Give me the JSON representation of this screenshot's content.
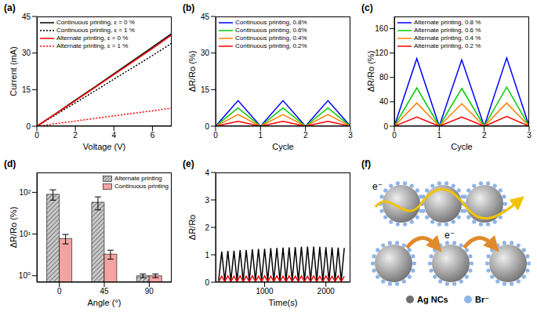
{
  "chart_data": [
    {
      "type": "line",
      "title": "(a)",
      "x_label": "Voltage (V)",
      "y_label": "Current (mA)",
      "x": [
        0,
        1,
        2,
        3,
        4,
        5,
        6,
        7
      ],
      "xlim": [
        0,
        7
      ],
      "xticks": [
        0,
        2,
        4,
        6
      ],
      "ylim": [
        0,
        45
      ],
      "yticks": [
        0,
        15,
        30,
        45
      ],
      "legend": "upper left",
      "series": [
        {
          "name": "Continuous printing, ε = 0 %",
          "color": "#000000",
          "line_style": "solid",
          "values": [
            0,
            5.3,
            10.7,
            16,
            21.5,
            27,
            32.4,
            38
          ]
        },
        {
          "name": "Continuous printing, ε = 1 %",
          "color": "#000000",
          "line_style": "dotted",
          "values": [
            0,
            4.8,
            9.6,
            14.4,
            19.3,
            24.1,
            29,
            34
          ]
        },
        {
          "name": "Alternate printing, ε = 0 %",
          "color": "#ff0000",
          "line_style": "solid",
          "values": [
            0,
            5.2,
            10.5,
            15.8,
            21.2,
            26.5,
            31.9,
            37.4
          ]
        },
        {
          "name": "Alternate printing, ε = 1 %",
          "color": "#ff0000",
          "line_style": "dotted",
          "values": [
            0,
            1.05,
            2.1,
            3.2,
            4.2,
            5.3,
            6.3,
            7.4
          ]
        }
      ]
    },
    {
      "type": "line",
      "title": "(b)",
      "x_label": "Cycle",
      "y_label": "ΔR/Ro (%)",
      "x": [
        0,
        0.5,
        1,
        1.5,
        2,
        2.5,
        3
      ],
      "xlim": [
        0,
        3
      ],
      "xticks": [
        0,
        1,
        2,
        3
      ],
      "ylim": [
        0,
        45
      ],
      "yticks": [
        0,
        15,
        30,
        45
      ],
      "legend": "upper left",
      "series": [
        {
          "name": "Continuous printing, 0.8%",
          "color": "#0000ff",
          "line_style": "solid",
          "values": [
            0,
            10.5,
            0,
            10.5,
            0,
            10.5,
            0
          ]
        },
        {
          "name": "Continuous printing, 0.6%",
          "color": "#00cc00",
          "line_style": "solid",
          "values": [
            0,
            7.5,
            0,
            7.5,
            0,
            7.5,
            0
          ]
        },
        {
          "name": "Continuous printing, 0.4%",
          "color": "#ff8000",
          "line_style": "solid",
          "values": [
            0,
            4.8,
            0,
            4.8,
            0,
            4.8,
            0
          ]
        },
        {
          "name": "Continuous printing, 0.2%",
          "color": "#ff0000",
          "line_style": "solid",
          "values": [
            0,
            2,
            0,
            2,
            0,
            2,
            0
          ]
        }
      ]
    },
    {
      "type": "line",
      "title": "(c)",
      "x_label": "Cycle",
      "y_label": "ΔR/Ro (%)",
      "x": [
        0,
        0.5,
        1,
        1.5,
        2,
        2.5,
        3
      ],
      "xlim": [
        0,
        3
      ],
      "xticks": [
        0,
        1,
        2,
        3
      ],
      "ylim": [
        0,
        180
      ],
      "yticks": [
        0,
        40,
        80,
        120,
        160
      ],
      "legend": "upper left",
      "series": [
        {
          "name": "Alternate printing, 0.8 %",
          "color": "#0000ff",
          "line_style": "solid",
          "values": [
            0,
            111,
            0,
            109,
            0,
            112,
            0
          ]
        },
        {
          "name": "Alternate printing, 0.6 %",
          "color": "#00cc00",
          "line_style": "solid",
          "values": [
            0,
            63,
            0,
            62,
            0,
            64,
            0
          ]
        },
        {
          "name": "Alternate printing, 0.4 %",
          "color": "#ff8000",
          "line_style": "solid",
          "values": [
            0,
            38,
            0,
            37,
            0,
            38,
            0
          ]
        },
        {
          "name": "Alternate printing, 0.2 %",
          "color": "#ff0000",
          "line_style": "solid",
          "values": [
            0,
            15,
            0,
            15,
            0,
            16,
            0
          ]
        }
      ]
    },
    {
      "type": "bar",
      "title": "(d)",
      "x_label": "Angle (°)",
      "y_label": "ΔR/Ro (%)",
      "categories": [
        "0",
        "45",
        "90"
      ],
      "log": "y",
      "ylim": [
        0.7,
        300
      ],
      "yticks": [
        {
          "value": 1,
          "label": "10⁰"
        },
        {
          "value": 10,
          "label": "10¹"
        },
        {
          "value": 100,
          "label": "10²"
        }
      ],
      "legend": "upper right",
      "series": [
        {
          "name": "Alternate printing",
          "color": "#c8c8c8",
          "values": [
            90,
            58,
            1.0
          ],
          "errors": [
            25,
            20,
            0.1
          ]
        },
        {
          "name": "Continuous printing",
          "color": "#f4a3a3",
          "values": [
            7.8,
            3.3,
            1.0
          ],
          "errors": [
            2,
            0.8,
            0.1
          ]
        }
      ]
    },
    {
      "type": "line",
      "title": "(e)",
      "x_label": "Time(s)",
      "y_label": "ΔR/Ro",
      "x": [
        250,
        300,
        350,
        400,
        450,
        500,
        550,
        600,
        650,
        700,
        750,
        800,
        850,
        900,
        950,
        1000,
        1050,
        1100,
        1150,
        1200,
        1250,
        1300,
        1350,
        1400,
        1450,
        1500,
        1550,
        1600,
        1650,
        1700,
        1750,
        1800,
        1850,
        1900,
        1950,
        2000,
        2050,
        2100,
        2150,
        2200,
        2250,
        2300
      ],
      "xlim": [
        200,
        2400
      ],
      "xticks": [
        1000,
        2000
      ],
      "ylim": [
        0,
        4
      ],
      "yticks": [
        0,
        1,
        2,
        3,
        4
      ],
      "series": [
        {
          "color": "#000000",
          "line_style": "solid",
          "values": [
            0.05,
            1.12,
            0.05,
            1.14,
            0.05,
            1.15,
            0.05,
            1.17,
            0.05,
            1.18,
            0.05,
            1.2,
            0.05,
            1.21,
            0.05,
            1.22,
            0.05,
            1.24,
            0.05,
            1.25,
            0.05,
            1.26,
            0.05,
            1.27,
            0.05,
            1.28,
            0.05,
            1.29,
            0.05,
            1.3,
            0.05,
            1.3,
            0.05,
            1.29,
            0.05,
            1.28,
            0.05,
            1.27,
            0.05,
            1.26,
            0.05,
            1.25
          ]
        },
        {
          "color": "#ff0000",
          "line_style": "solid",
          "values": [
            0.02,
            0.22,
            0.02,
            0.23,
            0.02,
            0.22,
            0.02,
            0.23,
            0.02,
            0.22,
            0.02,
            0.23,
            0.02,
            0.22,
            0.02,
            0.23,
            0.02,
            0.22,
            0.02,
            0.23,
            0.02,
            0.22,
            0.02,
            0.23,
            0.02,
            0.22,
            0.02,
            0.23,
            0.02,
            0.22,
            0.02,
            0.23,
            0.02,
            0.22,
            0.02,
            0.23,
            0.02,
            0.22,
            0.02,
            0.23,
            0.02,
            0.22
          ]
        }
      ]
    }
  ],
  "diagram": {
    "title": "(f)",
    "top_row": {
      "electron_label": "e⁻"
    },
    "bottom_row": {
      "electron_label": "e⁻"
    },
    "legend": [
      {
        "label": "Ag NCs",
        "color": "#707070"
      },
      {
        "label": "Br⁻",
        "color": "#8fb4e8"
      }
    ]
  }
}
